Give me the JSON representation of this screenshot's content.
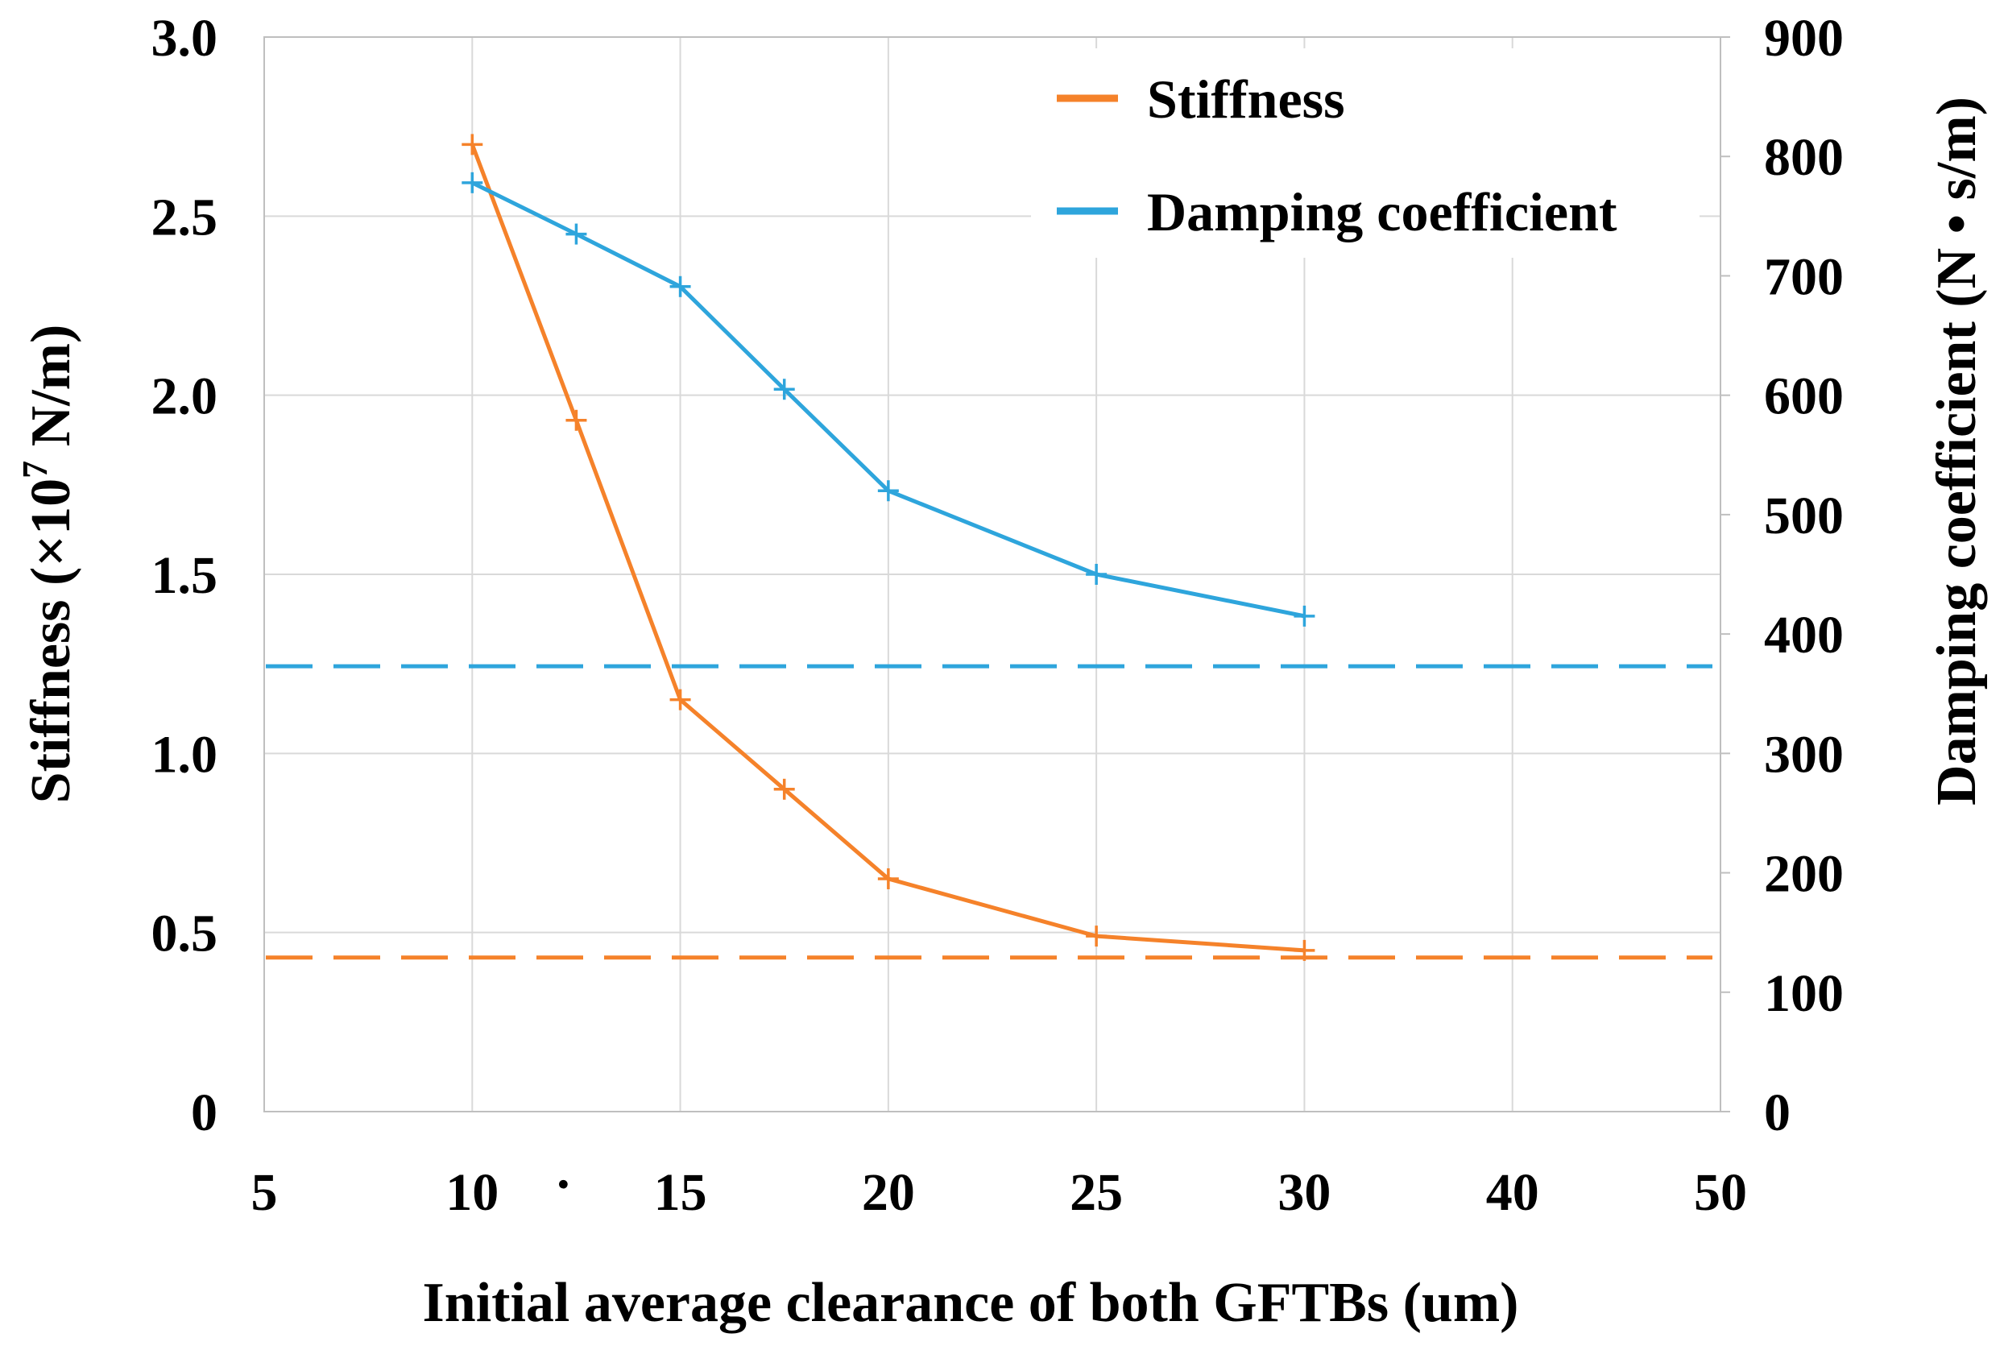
{
  "chart_data": {
    "type": "line",
    "xlabel": "Initial average clearance of both GFTBs (um)",
    "ylabel_left": {
      "text": "Stiffness (×10",
      "sup": "7",
      "suffix": " N/m)"
    },
    "ylabel_right": "Damping coefficient (N • s/m)",
    "x_ticks": [
      "5",
      "10",
      "15",
      "20",
      "25",
      "30",
      "40",
      "50"
    ],
    "x_minor_label": "·",
    "y_left_ticks": [
      "0",
      "0.5",
      "1.0",
      "1.5",
      "2.0",
      "2.5",
      "3.0"
    ],
    "y_left_lim": [
      0,
      3.0
    ],
    "y_right_ticks": [
      "0",
      "100",
      "200",
      "300",
      "400",
      "500",
      "600",
      "700",
      "800",
      "900"
    ],
    "y_right_lim": [
      0,
      900
    ],
    "x_category_positions": [
      10,
      12.5,
      15,
      17.5,
      20,
      25,
      30
    ],
    "series": [
      {
        "name": "Stiffness",
        "axis": "left",
        "color": "#f5822a",
        "x": [
          10,
          12.5,
          15,
          17.5,
          20,
          25,
          30
        ],
        "values": [
          2.7,
          1.93,
          1.15,
          0.9,
          0.65,
          0.49,
          0.45
        ]
      },
      {
        "name": "Damping coefficient",
        "axis": "right",
        "color": "#2ea5dc",
        "x": [
          10,
          12.5,
          15,
          17.5,
          20,
          25,
          30
        ],
        "values": [
          778,
          735,
          691,
          605,
          520,
          450,
          415
        ]
      }
    ],
    "reference_lines": [
      {
        "name": "stiffness-reference",
        "axis": "left",
        "value": 0.43,
        "color": "#f5822a",
        "style": "dashed"
      },
      {
        "name": "damping-reference",
        "axis": "right",
        "value": 373,
        "color": "#2ea5dc",
        "style": "dashed"
      }
    ],
    "legend": {
      "placement": "top-right",
      "entries": [
        {
          "label": "Stiffness",
          "color": "#f5822a"
        },
        {
          "label": "Damping coefficient",
          "color": "#2ea5dc"
        }
      ]
    },
    "grid": true
  }
}
